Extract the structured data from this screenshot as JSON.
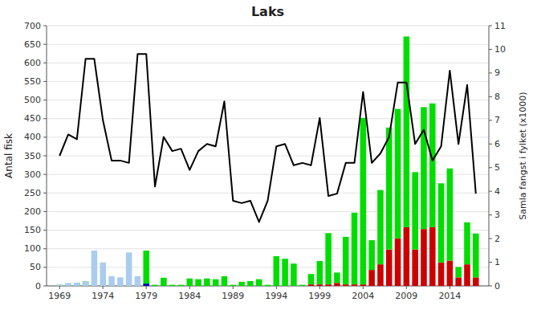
{
  "chart_data": {
    "type": "bar",
    "title": "Laks",
    "y_label": "Antal fisk",
    "y2_label": "Samla fangst i fylket (x1000)",
    "x": [
      1969,
      1970,
      1971,
      1972,
      1973,
      1974,
      1975,
      1976,
      1977,
      1978,
      1979,
      1980,
      1981,
      1982,
      1983,
      1984,
      1985,
      1986,
      1987,
      1988,
      1989,
      1990,
      1991,
      1992,
      1993,
      1994,
      1995,
      1996,
      1997,
      1998,
      1999,
      2000,
      2001,
      2002,
      2003,
      2004,
      2005,
      2006,
      2007,
      2008,
      2009,
      2010,
      2011,
      2012,
      2013,
      2014,
      2015,
      2016,
      2017
    ],
    "xlim": [
      1967.5,
      2018.5
    ],
    "xticks": [
      1969,
      1974,
      1979,
      1984,
      1989,
      1994,
      1999,
      2004,
      2009,
      2014
    ],
    "ylim": [
      0,
      700
    ],
    "yticks": [
      0,
      50,
      100,
      150,
      200,
      250,
      300,
      350,
      400,
      450,
      500,
      550,
      600,
      650,
      700
    ],
    "y2lim": [
      0,
      11
    ],
    "y2ticks": [
      0,
      1,
      2,
      3,
      4,
      5,
      6,
      7,
      8,
      9,
      10,
      11
    ],
    "grid": true,
    "stacked": true,
    "series": [
      {
        "type": "bar",
        "stacked": true,
        "color": "#cc0000",
        "values": [
          0,
          0,
          0,
          0,
          0,
          0,
          0,
          0,
          0,
          0,
          0,
          0,
          0,
          0,
          0,
          0,
          0,
          0,
          0,
          0,
          0,
          0,
          0,
          0,
          0,
          0,
          0,
          0,
          0,
          4,
          4,
          4,
          8,
          4,
          4,
          4,
          43,
          58,
          98,
          128,
          158,
          98,
          153,
          158,
          63,
          68,
          23,
          58,
          23
        ]
      },
      {
        "type": "bar",
        "stacked": true,
        "color": "#00dd00",
        "values": [
          3,
          3,
          8,
          12,
          3,
          3,
          3,
          3,
          3,
          3,
          95,
          3,
          22,
          3,
          3,
          20,
          18,
          20,
          18,
          26,
          3,
          11,
          13,
          18,
          3,
          80,
          73,
          60,
          3,
          28,
          63,
          138,
          28,
          128,
          193,
          448,
          80,
          200,
          328,
          348,
          513,
          208,
          328,
          333,
          213,
          248,
          28,
          113,
          118
        ]
      },
      {
        "type": "bar",
        "stacked": false,
        "color": "#aaccee",
        "values": [
          3,
          8,
          8,
          12,
          95,
          63,
          26,
          23,
          90,
          26,
          3,
          0,
          0,
          0,
          0,
          0,
          0,
          0,
          0,
          0,
          0,
          0,
          0,
          0,
          0,
          0,
          0,
          0,
          0,
          0,
          0,
          0,
          0,
          0,
          0,
          0,
          0,
          0,
          0,
          0,
          0,
          0,
          0,
          0,
          0,
          0,
          0,
          0,
          0
        ]
      },
      {
        "type": "bar",
        "stacked": false,
        "color": "#0000cc",
        "values": [
          0,
          0,
          0,
          0,
          0,
          0,
          0,
          0,
          0,
          0,
          6,
          0,
          0,
          0,
          0,
          0,
          0,
          0,
          0,
          0,
          0,
          0,
          0,
          0,
          0,
          0,
          0,
          0,
          0,
          0,
          0,
          0,
          0,
          0,
          0,
          0,
          0,
          0,
          0,
          0,
          0,
          0,
          0,
          0,
          0,
          0,
          0,
          0,
          0
        ]
      },
      {
        "type": "line",
        "axis": "y2",
        "color": "#000000",
        "values": [
          5.5,
          6.4,
          6.2,
          9.6,
          9.6,
          7.0,
          5.3,
          5.3,
          5.2,
          9.8,
          9.8,
          4.2,
          6.3,
          5.7,
          5.8,
          4.9,
          5.7,
          6.0,
          5.9,
          7.8,
          3.6,
          3.5,
          3.6,
          2.7,
          3.6,
          5.9,
          6.0,
          5.1,
          5.2,
          5.1,
          7.1,
          3.8,
          3.9,
          5.2,
          5.2,
          8.2,
          5.2,
          5.6,
          6.3,
          8.6,
          8.6,
          6.0,
          6.6,
          5.3,
          5.9,
          9.1,
          6.0,
          8.5,
          3.9
        ]
      }
    ]
  }
}
